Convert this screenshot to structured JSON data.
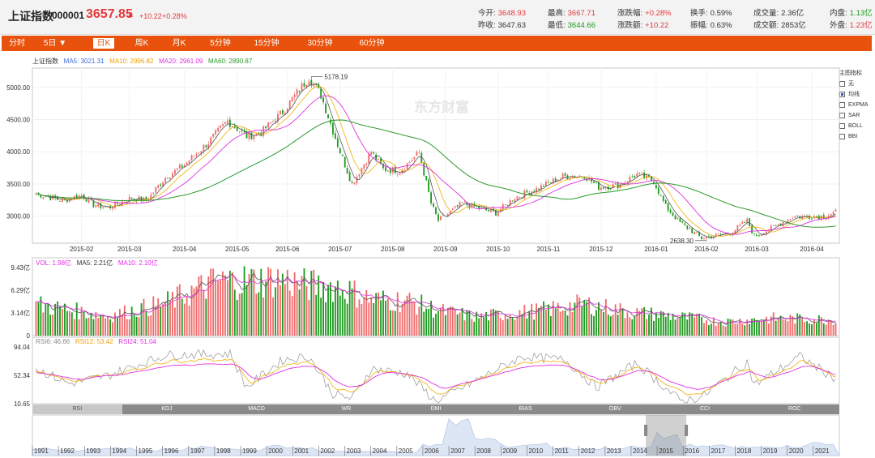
{
  "header": {
    "name": "上证指数",
    "code": "000001",
    "price": "3657.85",
    "arrow": "▲",
    "change": "+10.22",
    "change_pct": "+0.28%",
    "stats": [
      {
        "label": "今开:",
        "value": "3648.93",
        "color": "red"
      },
      {
        "label": "最高:",
        "value": "3667.71",
        "color": "red"
      },
      {
        "label": "涨跌幅:",
        "value": "+0.28%",
        "color": "red"
      },
      {
        "label": "换手:",
        "value": "0.59%",
        "color": "plain"
      },
      {
        "label": "成交量:",
        "value": "2.36亿",
        "color": "plain"
      },
      {
        "label": "内盘:",
        "value": "1.13亿",
        "color": "green"
      },
      {
        "label": "昨收:",
        "value": "3647.63",
        "color": "plain"
      },
      {
        "label": "最低:",
        "value": "3644.66",
        "color": "green"
      },
      {
        "label": "涨跌额:",
        "value": "+10.22",
        "color": "red"
      },
      {
        "label": "振幅:",
        "value": "0.63%",
        "color": "plain"
      },
      {
        "label": "成交额:",
        "value": "2853亿",
        "color": "plain"
      },
      {
        "label": "外盘:",
        "value": "1.23亿",
        "color": "red"
      }
    ]
  },
  "tabs": [
    "分时",
    "5日 ▼",
    "日K",
    "周K",
    "月K",
    "5分钟",
    "15分钟",
    "30分钟",
    "60分钟"
  ],
  "active_tab": "日K",
  "colors": {
    "up": "#f06a6a",
    "down": "#1d9a1d",
    "ma5": "#555555",
    "ma10": "#f0b000",
    "ma20": "#e030e0",
    "ma60": "#2a9a2a",
    "brand": "#e8520c",
    "blue_legend": "#3c6bd8"
  },
  "main_legend": {
    "name": "上证指数",
    "ma5": "MA5: 3021.31",
    "ma10": "MA10: 2996.82",
    "ma20": "MA20: 2961.09",
    "ma60": "MA60: 2890.87"
  },
  "vol_legend": {
    "vol": "VOL: 1.98亿",
    "ma5": "MA5: 2.21亿",
    "ma10": "MA10: 2.10亿"
  },
  "rsi_legend": {
    "rsi6": "RSI6: 46.66",
    "rsi12": "RSI12: 53.42",
    "rsi24": "RSI24: 51.04"
  },
  "watermark": "东方财富",
  "indicator_panel": {
    "title": "主图指标",
    "items": [
      {
        "label": "无",
        "checked": false
      },
      {
        "label": "均线",
        "checked": true
      },
      {
        "label": "EXPMA",
        "checked": false
      },
      {
        "label": "SAR",
        "checked": false
      },
      {
        "label": "BOLL",
        "checked": false
      },
      {
        "label": "BBI",
        "checked": false
      }
    ]
  },
  "indicator_tabs": [
    "RSI",
    "KDJ",
    "MACD",
    "WR",
    "DMI",
    "BIAS",
    "OBV",
    "CCI",
    "ROC"
  ],
  "active_indicator": "RSI",
  "nav_years": [
    "1991",
    "1992",
    "1993",
    "1994",
    "1995",
    "1996",
    "1997",
    "1998",
    "1999",
    "2000",
    "2001",
    "2002",
    "2003",
    "2004",
    "2005",
    "2006",
    "2007",
    "2008",
    "2009",
    "2010",
    "2011",
    "2012",
    "2013",
    "2014",
    "2015",
    "2016",
    "2017",
    "2018",
    "2019",
    "2020",
    "2021"
  ],
  "chart_data": {
    "type": "candlestick",
    "x_ticks": [
      "2015-02",
      "2015-03",
      "2015-04",
      "2015-05",
      "2015-06",
      "2015-07",
      "2015-08",
      "2015-09",
      "2015-10",
      "2015-11",
      "2015-12",
      "2016-01",
      "2016-02",
      "2016-03",
      "2016-04"
    ],
    "price_axis": {
      "ticks": [
        "5000.00",
        "4500.00",
        "4000.00",
        "3500.00",
        "3000.00"
      ],
      "ylim": [
        2580,
        5300
      ]
    },
    "high_annotation": {
      "value": "5178.19",
      "date": "2015-06"
    },
    "low_annotation": {
      "value": "2638.30",
      "date": "2016-01"
    },
    "close_keypoints": [
      {
        "d": "2015-01-05",
        "c": 3350
      },
      {
        "d": "2015-01-20",
        "c": 3240
      },
      {
        "d": "2015-01-30",
        "c": 3330
      },
      {
        "d": "2015-02-06",
        "c": 3180
      },
      {
        "d": "2015-02-16",
        "c": 3130
      },
      {
        "d": "2015-03-02",
        "c": 3290
      },
      {
        "d": "2015-03-10",
        "c": 3240
      },
      {
        "d": "2015-03-20",
        "c": 3600
      },
      {
        "d": "2015-04-01",
        "c": 3800
      },
      {
        "d": "2015-04-15",
        "c": 4150
      },
      {
        "d": "2015-04-27",
        "c": 4480
      },
      {
        "d": "2015-05-07",
        "c": 4240
      },
      {
        "d": "2015-05-15",
        "c": 4300
      },
      {
        "d": "2015-05-28",
        "c": 4620
      },
      {
        "d": "2015-06-12",
        "c": 5160
      },
      {
        "d": "2015-06-19",
        "c": 4880
      },
      {
        "d": "2015-06-26",
        "c": 4330
      },
      {
        "d": "2015-07-01",
        "c": 4000
      },
      {
        "d": "2015-07-08",
        "c": 3500
      },
      {
        "d": "2015-07-20",
        "c": 4000
      },
      {
        "d": "2015-07-27",
        "c": 3730
      },
      {
        "d": "2015-08-05",
        "c": 3700
      },
      {
        "d": "2015-08-17",
        "c": 3990
      },
      {
        "d": "2015-08-24",
        "c": 3200
      },
      {
        "d": "2015-08-27",
        "c": 2930
      },
      {
        "d": "2015-09-10",
        "c": 3200
      },
      {
        "d": "2015-09-30",
        "c": 3050
      },
      {
        "d": "2015-10-12",
        "c": 3290
      },
      {
        "d": "2015-10-26",
        "c": 3440
      },
      {
        "d": "2015-11-09",
        "c": 3620
      },
      {
        "d": "2015-11-20",
        "c": 3630
      },
      {
        "d": "2015-11-30",
        "c": 3450
      },
      {
        "d": "2015-12-10",
        "c": 3480
      },
      {
        "d": "2015-12-22",
        "c": 3650
      },
      {
        "d": "2015-12-31",
        "c": 3540
      },
      {
        "d": "2016-01-07",
        "c": 3150
      },
      {
        "d": "2016-01-15",
        "c": 2900
      },
      {
        "d": "2016-01-28",
        "c": 2660
      },
      {
        "d": "2016-02-15",
        "c": 2740
      },
      {
        "d": "2016-02-24",
        "c": 2930
      },
      {
        "d": "2016-02-29",
        "c": 2690
      },
      {
        "d": "2016-03-10",
        "c": 2830
      },
      {
        "d": "2016-03-22",
        "c": 2990
      },
      {
        "d": "2016-04-08",
        "c": 3000
      },
      {
        "d": "2016-04-15",
        "c": 3060
      }
    ],
    "volume_axis": {
      "ticks": [
        "9.43亿",
        "6.29亿",
        "3.14亿",
        "0"
      ]
    },
    "volume_profile_yi": [
      {
        "d": "2015-01-05",
        "v": 4.3
      },
      {
        "d": "2015-02-16",
        "v": 2.7
      },
      {
        "d": "2015-03-20",
        "v": 4.5
      },
      {
        "d": "2015-04-20",
        "v": 7.5
      },
      {
        "d": "2015-05-28",
        "v": 7.8
      },
      {
        "d": "2015-06-10",
        "v": 7.0
      },
      {
        "d": "2015-06-30",
        "v": 6.8
      },
      {
        "d": "2015-07-20",
        "v": 5.0
      },
      {
        "d": "2015-08-10",
        "v": 4.8
      },
      {
        "d": "2015-08-28",
        "v": 3.4
      },
      {
        "d": "2015-09-20",
        "v": 2.6
      },
      {
        "d": "2015-10-30",
        "v": 3.6
      },
      {
        "d": "2015-11-20",
        "v": 4.4
      },
      {
        "d": "2015-12-20",
        "v": 3.2
      },
      {
        "d": "2016-01-10",
        "v": 2.8
      },
      {
        "d": "2016-02-10",
        "v": 1.9
      },
      {
        "d": "2016-03-10",
        "v": 2.4
      },
      {
        "d": "2016-04-15",
        "v": 2.2
      }
    ],
    "rsi_axis": {
      "ticks": [
        "94.04",
        "52.34",
        "10.65"
      ]
    },
    "rsi6_keypoints": [
      {
        "d": "2015-01-05",
        "r": 62
      },
      {
        "d": "2015-01-25",
        "r": 40
      },
      {
        "d": "2015-02-16",
        "r": 52
      },
      {
        "d": "2015-03-20",
        "r": 82
      },
      {
        "d": "2015-04-28",
        "r": 84
      },
      {
        "d": "2015-05-07",
        "r": 35
      },
      {
        "d": "2015-05-28",
        "r": 75
      },
      {
        "d": "2015-06-12",
        "r": 80
      },
      {
        "d": "2015-06-26",
        "r": 25
      },
      {
        "d": "2015-07-08",
        "r": 18
      },
      {
        "d": "2015-07-20",
        "r": 62
      },
      {
        "d": "2015-08-10",
        "r": 55
      },
      {
        "d": "2015-08-26",
        "r": 14
      },
      {
        "d": "2015-09-20",
        "r": 45
      },
      {
        "d": "2015-10-15",
        "r": 80
      },
      {
        "d": "2015-11-10",
        "r": 75
      },
      {
        "d": "2015-11-27",
        "r": 35
      },
      {
        "d": "2015-12-22",
        "r": 70
      },
      {
        "d": "2016-01-15",
        "r": 15
      },
      {
        "d": "2016-01-28",
        "r": 20
      },
      {
        "d": "2016-02-24",
        "r": 72
      },
      {
        "d": "2016-02-29",
        "r": 38
      },
      {
        "d": "2016-03-25",
        "r": 80
      },
      {
        "d": "2016-04-15",
        "r": 47
      }
    ]
  }
}
